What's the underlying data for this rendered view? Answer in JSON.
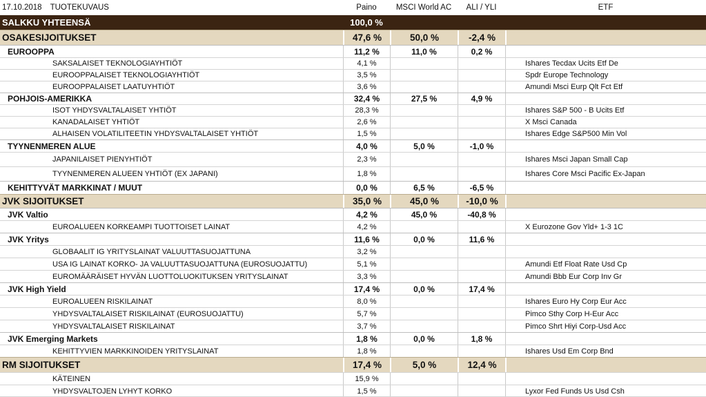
{
  "header": {
    "date": "17.10.2018",
    "description": "TUOTEKUVAUS",
    "weight": "Paino",
    "benchmark": "MSCI World AC",
    "diff": "ALI / YLI",
    "etf": "ETF"
  },
  "total": {
    "label": "SALKKU YHTEENSÄ",
    "weight": "100,0 %"
  },
  "rows": [
    {
      "type": "group",
      "label": "OSAKESIJOITUKSET",
      "weight": "47,6 %",
      "bench": "50,0 %",
      "diff": "-2,4 %",
      "etf": ""
    },
    {
      "type": "sub",
      "label": "EUROOPPA",
      "weight": "11,2 %",
      "bench": "11,0 %",
      "diff": "0,2 %",
      "etf": ""
    },
    {
      "type": "item",
      "label": "SAKSALAISET TEKNOLOGIAYHTIÖT",
      "weight": "4,1 %",
      "bench": "",
      "diff": "",
      "etf": "Ishares Tecdax Ucits Etf De"
    },
    {
      "type": "item",
      "label": "EUROOPPALAISET TEKNOLOGIAYHTIÖT",
      "weight": "3,5 %",
      "bench": "",
      "diff": "",
      "etf": "Spdr Europe Technology"
    },
    {
      "type": "item",
      "label": "EUROOPPALAISET LAATUYHTIÖT",
      "weight": "3,6 %",
      "bench": "",
      "diff": "",
      "etf": "Amundi Msci Eurp Qlt Fct Etf"
    },
    {
      "type": "sub",
      "label": "POHJOIS-AMERIKKA",
      "weight": "32,4 %",
      "bench": "27,5 %",
      "diff": "4,9 %",
      "etf": ""
    },
    {
      "type": "item",
      "label": "ISOT YHDYSVALTALAISET YHTIÖT",
      "weight": "28,3 %",
      "bench": "",
      "diff": "",
      "etf": "Ishares S&P 500 - B Ucits Etf"
    },
    {
      "type": "item",
      "label": "KANADALAISET YHTIÖT",
      "weight": "2,6 %",
      "bench": "",
      "diff": "",
      "etf": "X Msci Canada"
    },
    {
      "type": "item",
      "label": "ALHAISEN VOLATILITEETIN YHDYSVALTALAISET YHTIÖT",
      "weight": "1,5 %",
      "bench": "",
      "diff": "",
      "etf": "Ishares Edge S&P500 Min Vol"
    },
    {
      "type": "sub",
      "label": "TYYNENMEREN ALUE",
      "weight": "4,0 %",
      "bench": "5,0 %",
      "diff": "-1,0 %",
      "etf": ""
    },
    {
      "type": "item",
      "label": "JAPANILAISET PIENYHTIÖT",
      "weight": "2,3 %",
      "bench": "",
      "diff": "",
      "etf": "Ishares Msci Japan Small Cap"
    },
    {
      "type": "item",
      "label": "TYYNENMEREN ALUEEN YHTIÖT (EX JAPANI)",
      "weight": "1,8 %",
      "bench": "",
      "diff": "",
      "etf": "Ishares Core Msci Pacific Ex-Japan"
    },
    {
      "type": "sub",
      "label": "KEHITTYVÄT MARKKINAT / MUUT",
      "weight": "0,0 %",
      "bench": "6,5 %",
      "diff": "-6,5 %",
      "etf": ""
    },
    {
      "type": "group",
      "label": "JVK SIJOITUKSET",
      "weight": "35,0 %",
      "bench": "45,0 %",
      "diff": "-10,0 %",
      "etf": ""
    },
    {
      "type": "sub",
      "label": "JVK Valtio",
      "weight": "4,2 %",
      "bench": "45,0 %",
      "diff": "-40,8 %",
      "etf": ""
    },
    {
      "type": "item",
      "label": "EUROALUEEN KORKEAMPI TUOTTOISET LAINAT",
      "weight": "4,2 %",
      "bench": "",
      "diff": "",
      "etf": "X Eurozone Gov Yld+ 1-3 1C"
    },
    {
      "type": "sub",
      "label": "JVK Yritys",
      "weight": "11,6 %",
      "bench": "0,0 %",
      "diff": "11,6 %",
      "etf": ""
    },
    {
      "type": "item",
      "label": "GLOBAALIT IG YRITYSLAINAT VALUUTTASUOJATTUNA",
      "weight": "3,2 %",
      "bench": "",
      "diff": "",
      "etf": ""
    },
    {
      "type": "item",
      "label": "USA IG LAINAT KORKO- JA VALUUTTASUOJATTUNA (EUROSUOJATTU)",
      "weight": "5,1 %",
      "bench": "",
      "diff": "",
      "etf": "Amundi Etf Float Rate Usd Cp"
    },
    {
      "type": "item",
      "label": "EUROMÄÄRÄISET HYVÄN LUOTTOLUOKITUKSEN YRITYSLAINAT",
      "weight": "3,3 %",
      "bench": "",
      "diff": "",
      "etf": "Amundi Bbb Eur Corp Inv Gr"
    },
    {
      "type": "sub",
      "label": "JVK High Yield",
      "weight": "17,4 %",
      "bench": "0,0 %",
      "diff": "17,4 %",
      "etf": ""
    },
    {
      "type": "item",
      "label": "EUROALUEEN RISKILAINAT",
      "weight": "8,0 %",
      "bench": "",
      "diff": "",
      "etf": "Ishares Euro Hy Corp Eur Acc"
    },
    {
      "type": "item",
      "label": "YHDYSVALTALAISET RISKILAINAT (EUROSUOJATTU)",
      "weight": "5,7 %",
      "bench": "",
      "diff": "",
      "etf": "Pimco Sthy Corp H-Eur Acc"
    },
    {
      "type": "item",
      "label": "YHDYSVALTALAISET RISKILAINAT",
      "weight": "3,7 %",
      "bench": "",
      "diff": "",
      "etf": "Pimco Shrt Hiyi Corp-Usd Acc"
    },
    {
      "type": "sub",
      "label": "JVK Emerging Markets",
      "weight": "1,8 %",
      "bench": "0,0 %",
      "diff": "1,8 %",
      "etf": ""
    },
    {
      "type": "item",
      "label": "KEHITTYVIEN MARKKINOIDEN YRITYSLAINAT",
      "weight": "1,8 %",
      "bench": "",
      "diff": "",
      "etf": "Ishares Usd Em Corp Bnd"
    },
    {
      "type": "group",
      "label": "RM SIJOITUKSET",
      "weight": "17,4 %",
      "bench": "5,0 %",
      "diff": "12,4 %",
      "etf": ""
    },
    {
      "type": "item",
      "label": "KÄTEINEN",
      "weight": "15,9 %",
      "bench": "",
      "diff": "",
      "etf": ""
    },
    {
      "type": "item",
      "label": "YHDYSVALTOJEN LYHYT KORKO",
      "weight": "1,5 %",
      "bench": "",
      "diff": "",
      "etf": "Lyxor Fed Funds Us Usd Csh"
    }
  ]
}
